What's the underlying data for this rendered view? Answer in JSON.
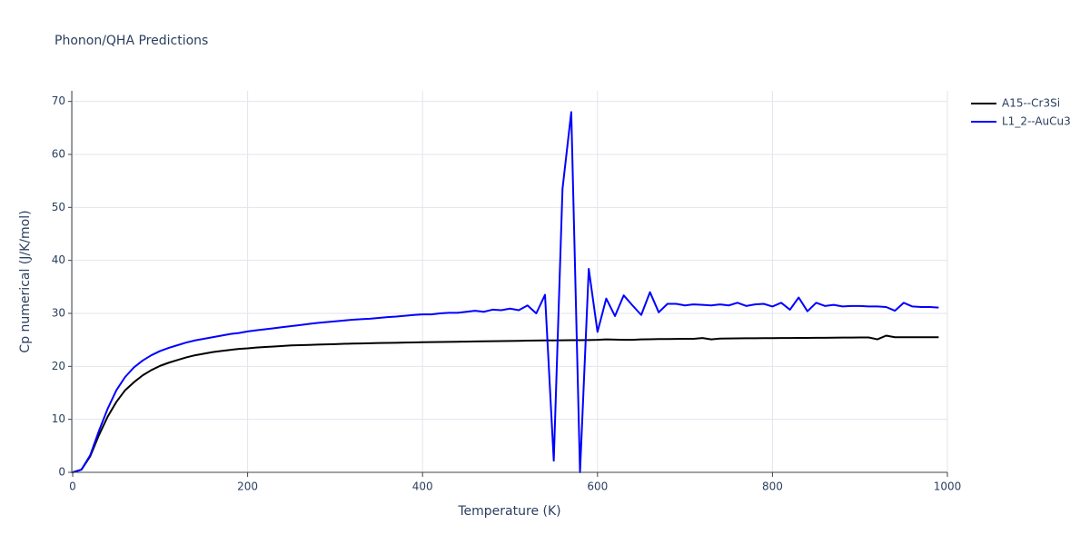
{
  "chart_data": {
    "type": "line",
    "title": "Phonon/QHA Predictions",
    "x_label": "Temperature (K)",
    "y_label": "Cp numerical (J/K/mol)",
    "xlim": [
      0,
      1000
    ],
    "ylim": [
      0,
      72
    ],
    "xticks": [
      0,
      200,
      400,
      600,
      800,
      1000
    ],
    "yticks": [
      0,
      10,
      20,
      30,
      40,
      50,
      60,
      70
    ],
    "grid": true,
    "legend": "right",
    "x": [
      0,
      10,
      20,
      30,
      40,
      50,
      60,
      70,
      80,
      90,
      100,
      110,
      120,
      130,
      140,
      150,
      160,
      170,
      180,
      190,
      200,
      210,
      220,
      230,
      240,
      250,
      260,
      270,
      280,
      290,
      300,
      310,
      320,
      330,
      340,
      350,
      360,
      370,
      380,
      390,
      400,
      410,
      420,
      430,
      440,
      450,
      460,
      470,
      480,
      490,
      500,
      510,
      520,
      530,
      540,
      550,
      560,
      570,
      580,
      590,
      600,
      610,
      620,
      630,
      640,
      650,
      660,
      670,
      680,
      690,
      700,
      710,
      720,
      730,
      740,
      750,
      760,
      770,
      780,
      790,
      800,
      810,
      820,
      830,
      840,
      850,
      860,
      870,
      880,
      890,
      900,
      910,
      920,
      930,
      940,
      950,
      960,
      970,
      980,
      990
    ],
    "series": [
      {
        "name": "A15--Cr3Si",
        "color": "#000000",
        "values": [
          0,
          0.5,
          3,
          7,
          10.5,
          13.3,
          15.5,
          17,
          18.3,
          19.3,
          20.1,
          20.7,
          21.2,
          21.7,
          22.1,
          22.4,
          22.7,
          22.9,
          23.1,
          23.3,
          23.4,
          23.55,
          23.65,
          23.75,
          23.85,
          23.95,
          24.0,
          24.05,
          24.1,
          24.15,
          24.2,
          24.25,
          24.3,
          24.33,
          24.36,
          24.4,
          24.43,
          24.46,
          24.5,
          24.52,
          24.55,
          24.57,
          24.6,
          24.62,
          24.65,
          24.67,
          24.7,
          24.72,
          24.75,
          24.77,
          24.8,
          24.82,
          24.85,
          24.87,
          24.9,
          24.9,
          24.92,
          24.95,
          24.95,
          24.97,
          25.0,
          25.1,
          25.05,
          25.0,
          25.0,
          25.1,
          25.12,
          25.15,
          25.15,
          25.17,
          25.2,
          25.2,
          25.35,
          25.1,
          25.25,
          25.27,
          25.28,
          25.3,
          25.3,
          25.32,
          25.33,
          25.35,
          25.36,
          25.37,
          25.38,
          25.4,
          25.4,
          25.42,
          25.43,
          25.44,
          25.45,
          25.45,
          25.1,
          25.8,
          25.5,
          25.5,
          25.5,
          25.5,
          25.5,
          25.5
        ]
      },
      {
        "name": "L1_2--AuCu3",
        "color": "#0000ff",
        "values": [
          0,
          0.5,
          3.2,
          7.8,
          12,
          15.5,
          18,
          19.8,
          21.1,
          22.1,
          22.9,
          23.5,
          24,
          24.5,
          24.9,
          25.2,
          25.5,
          25.8,
          26.1,
          26.3,
          26.6,
          26.8,
          27.0,
          27.2,
          27.4,
          27.6,
          27.8,
          28.0,
          28.2,
          28.35,
          28.5,
          28.65,
          28.8,
          28.9,
          29.0,
          29.15,
          29.3,
          29.4,
          29.55,
          29.7,
          29.8,
          29.8,
          30,
          30.1,
          30.1,
          30.3,
          30.5,
          30.3,
          30.7,
          30.6,
          30.9,
          30.6,
          31.5,
          30,
          33.5,
          2.2,
          53.5,
          68,
          0,
          38.4,
          26.5,
          32.8,
          29.5,
          33.4,
          31.5,
          29.7,
          34,
          30.2,
          31.8,
          31.8,
          31.5,
          31.7,
          31.6,
          31.5,
          31.7,
          31.5,
          32,
          31.4,
          31.7,
          31.8,
          31.3,
          32,
          30.7,
          33,
          30.4,
          32,
          31.4,
          31.6,
          31.3,
          31.4,
          31.4,
          31.3,
          31.3,
          31.2,
          30.5,
          32,
          31.3,
          31.2,
          31.2,
          31.1
        ]
      }
    ]
  }
}
